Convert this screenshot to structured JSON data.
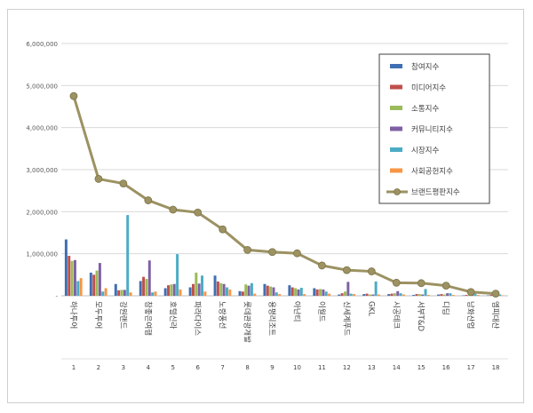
{
  "chart_data": {
    "type": "bar",
    "title": "",
    "xlabel": "",
    "ylabel": "",
    "ylim": [
      0,
      6000000
    ],
    "yticks": [
      "-",
      "1,000,000",
      "2,000,000",
      "3,000,000",
      "4,000,000",
      "5,000,000",
      "6,000,000"
    ],
    "ytick_values": [
      0,
      1000000,
      2000000,
      3000000,
      4000000,
      5000000,
      6000000
    ],
    "grid": true,
    "legend_position": "top-right",
    "categories": [
      "하나투어",
      "모두투어",
      "강원랜드",
      "참좋은여행",
      "호텔신라",
      "파라다이스",
      "노랑풍선",
      "롯데관광개발",
      "용평리조트",
      "아난티",
      "이월드",
      "신세계푸드",
      "GKL",
      "시공테크",
      "서부T&D",
      "디딤",
      "남화산업",
      "엠피대산"
    ],
    "ranks": [
      "1",
      "2",
      "3",
      "4",
      "5",
      "6",
      "7",
      "8",
      "9",
      "10",
      "11",
      "12",
      "13",
      "14",
      "15",
      "16",
      "17",
      "18"
    ],
    "series": [
      {
        "name": "참여지수",
        "color": "#3f6fb2",
        "values": [
          1340000,
          550000,
          280000,
          350000,
          180000,
          200000,
          480000,
          110000,
          280000,
          250000,
          180000,
          30000,
          40000,
          40000,
          20000,
          30000,
          10000,
          10000
        ]
      },
      {
        "name": "미디어지수",
        "color": "#c0504d",
        "values": [
          950000,
          500000,
          130000,
          450000,
          250000,
          280000,
          340000,
          100000,
          240000,
          200000,
          150000,
          60000,
          50000,
          50000,
          40000,
          40000,
          20000,
          20000
        ]
      },
      {
        "name": "소통지수",
        "color": "#9bbb59",
        "values": [
          830000,
          600000,
          140000,
          400000,
          270000,
          550000,
          300000,
          270000,
          220000,
          180000,
          160000,
          100000,
          30000,
          60000,
          40000,
          30000,
          20000,
          10000
        ]
      },
      {
        "name": "커뮤니티지수",
        "color": "#7f60a4",
        "values": [
          850000,
          780000,
          140000,
          840000,
          280000,
          290000,
          280000,
          240000,
          200000,
          150000,
          150000,
          330000,
          30000,
          110000,
          30000,
          60000,
          30000,
          30000
        ]
      },
      {
        "name": "시장지수",
        "color": "#4bacc6",
        "values": [
          350000,
          100000,
          1920000,
          80000,
          990000,
          480000,
          200000,
          300000,
          80000,
          190000,
          100000,
          50000,
          340000,
          60000,
          160000,
          60000,
          50000,
          30000
        ]
      },
      {
        "name": "사회공헌지수",
        "color": "#f79646",
        "values": [
          420000,
          180000,
          80000,
          100000,
          150000,
          100000,
          150000,
          50000,
          40000,
          40000,
          50000,
          40000,
          30000,
          30000,
          20000,
          20000,
          20000,
          10000
        ]
      }
    ],
    "line_series": {
      "name": "브랜드평판지수",
      "color": "#9c9262",
      "values": [
        4750000,
        2780000,
        2670000,
        2270000,
        2050000,
        1980000,
        1580000,
        1090000,
        1040000,
        1010000,
        720000,
        610000,
        580000,
        310000,
        300000,
        240000,
        90000,
        50000
      ]
    }
  }
}
